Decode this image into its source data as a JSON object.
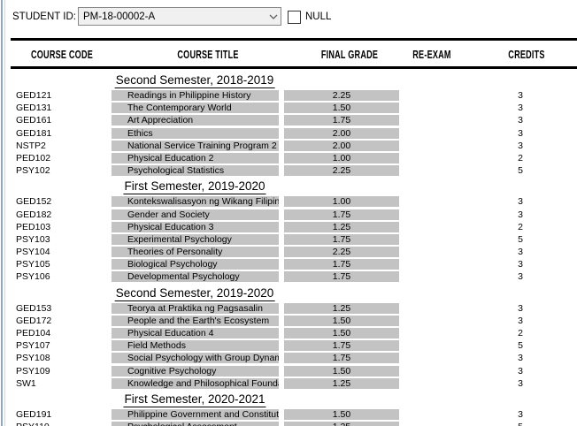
{
  "params": {
    "student_id_label": "STUDENT ID:",
    "student_id_value": "PM-18-00002-A",
    "null_label": "NULL"
  },
  "colors": {
    "cell_bg": "#c3c3c3",
    "rule": "#000000",
    "edge_accent": "#8fa8d0"
  },
  "report": {
    "columns": [
      "COURSE CODE",
      "COURSE TITLE",
      "FINAL GRADE",
      "RE-EXAM",
      "CREDITS"
    ],
    "sections": [
      {
        "title": "Second Semester, 2018-2019",
        "rows": [
          {
            "code": "GED121",
            "title": "Readings in Philippine History",
            "grade": "2.25",
            "reexam": "",
            "credits": "3"
          },
          {
            "code": "GED131",
            "title": "The Contemporary World",
            "grade": "1.50",
            "reexam": "",
            "credits": "3"
          },
          {
            "code": "GED161",
            "title": "Art Appreciation",
            "grade": "1.75",
            "reexam": "",
            "credits": "3"
          },
          {
            "code": "GED181",
            "title": "Ethics",
            "grade": "2.00",
            "reexam": "",
            "credits": "3"
          },
          {
            "code": "NSTP2",
            "title": "National Service Training Program 2",
            "grade": "2.00",
            "reexam": "",
            "credits": "3"
          },
          {
            "code": "PED102",
            "title": "Physical Education 2",
            "grade": "1.00",
            "reexam": "",
            "credits": "2"
          },
          {
            "code": "PSY102",
            "title": "Psychological Statistics",
            "grade": "2.25",
            "reexam": "",
            "credits": "5"
          }
        ]
      },
      {
        "title": "First Semester, 2019-2020",
        "rows": [
          {
            "code": "GED152",
            "title": "Kontekswalisasyon ng Wikang Filipino",
            "grade": "1.00",
            "reexam": "",
            "credits": "3"
          },
          {
            "code": "GED182",
            "title": "Gender and Society",
            "grade": "1.75",
            "reexam": "",
            "credits": "3"
          },
          {
            "code": "PED103",
            "title": "Physical Education 3",
            "grade": "1.25",
            "reexam": "",
            "credits": "2"
          },
          {
            "code": "PSY103",
            "title": "Experimental Psychology",
            "grade": "1.75",
            "reexam": "",
            "credits": "5"
          },
          {
            "code": "PSY104",
            "title": "Theories of Personality",
            "grade": "2.25",
            "reexam": "",
            "credits": "3"
          },
          {
            "code": "PSY105",
            "title": "Biological Psychology",
            "grade": "1.75",
            "reexam": "",
            "credits": "3"
          },
          {
            "code": "PSY106",
            "title": "Developmental Psychology",
            "grade": "1.75",
            "reexam": "",
            "credits": "3"
          }
        ]
      },
      {
        "title": "Second Semester, 2019-2020",
        "rows": [
          {
            "code": "GED153",
            "title": "Teorya at Praktika ng Pagsasalin",
            "grade": "1.25",
            "reexam": "",
            "credits": "3"
          },
          {
            "code": "GED172",
            "title": "People and the Earth's Ecosystem",
            "grade": "1.50",
            "reexam": "",
            "credits": "3"
          },
          {
            "code": "PED104",
            "title": "Physical Education 4",
            "grade": "1.50",
            "reexam": "",
            "credits": "2"
          },
          {
            "code": "PSY107",
            "title": "Field Methods",
            "grade": "1.75",
            "reexam": "",
            "credits": "5"
          },
          {
            "code": "PSY108",
            "title": "Social Psychology with Group Dynami",
            "grade": "1.75",
            "reexam": "",
            "credits": "3"
          },
          {
            "code": "PSY109",
            "title": "Cognitive Psychology",
            "grade": "1.50",
            "reexam": "",
            "credits": "3"
          },
          {
            "code": "SW1",
            "title": "Knowledge and Philosophical Founda",
            "grade": "1.25",
            "reexam": "",
            "credits": "3"
          }
        ]
      },
      {
        "title": "First Semester, 2020-2021",
        "rows": [
          {
            "code": "GED191",
            "title": "Philippine Government and Constituti",
            "grade": "1.50",
            "reexam": "",
            "credits": "3"
          },
          {
            "code": "PSY110",
            "title": "Psychological Assessment",
            "grade": "1.25",
            "reexam": "",
            "credits": "5"
          }
        ]
      }
    ]
  }
}
